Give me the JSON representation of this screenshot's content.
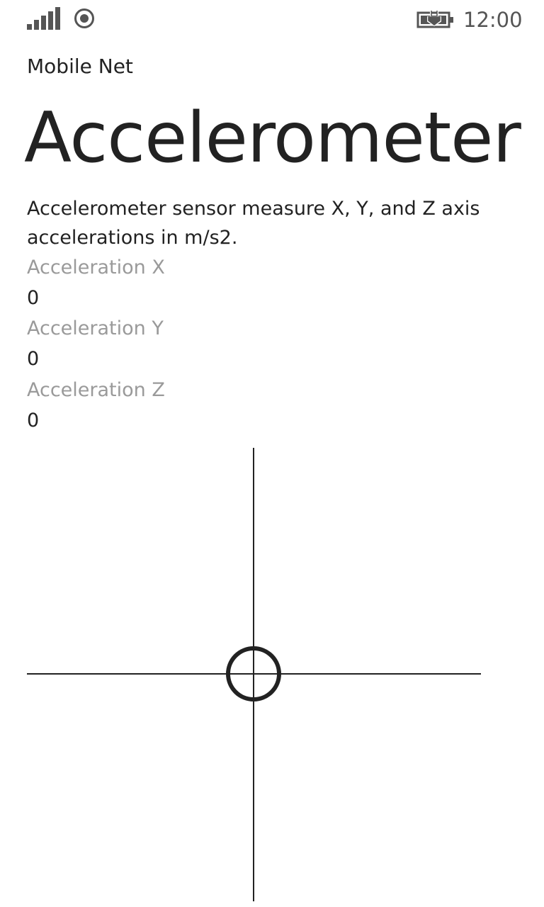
{
  "status_bar": {
    "time": "12:00",
    "signal_icon": "signal-bars-icon",
    "wifi_icon": "wifi-icon",
    "battery_icon": "battery-charging-icon"
  },
  "app": {
    "name": "Mobile Net"
  },
  "page": {
    "title": "Accelerometer",
    "description": "Accelerometer sensor measure X, Y, and Z axis accelerations in m/s2."
  },
  "readings": {
    "x_label": "Acceleration X",
    "x_value": "0",
    "y_label": "Acceleration Y",
    "y_value": "0",
    "z_label": "Acceleration Z",
    "z_value": "0"
  },
  "plot": {
    "indicator_x": 0,
    "indicator_y": 0,
    "line_color": "#222222"
  }
}
